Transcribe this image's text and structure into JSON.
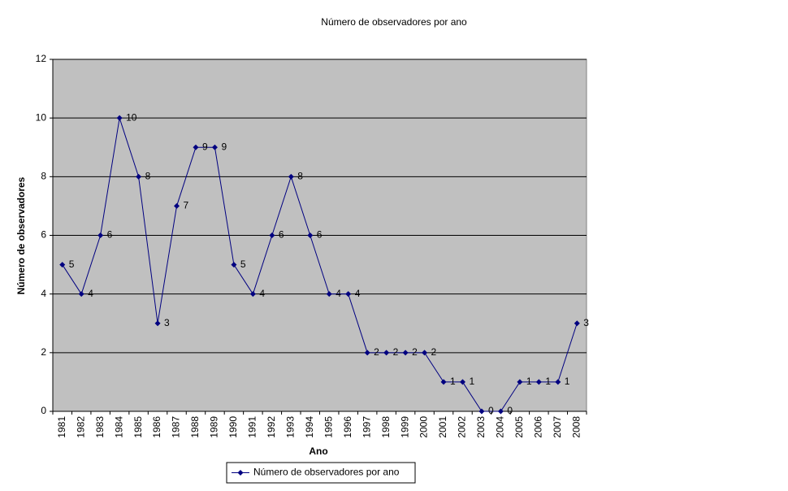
{
  "chart_data": {
    "type": "line",
    "title": "Número de observadores por ano",
    "x_label": "Ano",
    "y_label": "Número de observadores",
    "categories": [
      "1981",
      "1982",
      "1983",
      "1984",
      "1985",
      "1986",
      "1987",
      "1988",
      "1989",
      "1990",
      "1991",
      "1992",
      "1993",
      "1994",
      "1995",
      "1996",
      "1997",
      "1998",
      "1999",
      "2000",
      "2001",
      "2002",
      "2003",
      "2004",
      "2005",
      "2006",
      "2007",
      "2008"
    ],
    "series": [
      {
        "name": "Número de observadores por ano",
        "color": "#000080",
        "values": [
          5,
          4,
          6,
          10,
          8,
          3,
          7,
          9,
          9,
          5,
          4,
          6,
          8,
          6,
          4,
          4,
          2,
          2,
          2,
          2,
          1,
          1,
          0,
          0,
          1,
          1,
          1,
          3
        ]
      }
    ],
    "ylim": [
      0,
      12
    ],
    "yticks": [
      0,
      2,
      4,
      6,
      8,
      10,
      12
    ],
    "grid": true,
    "legend": "bottom",
    "plot_background": "#c0c0c0"
  }
}
